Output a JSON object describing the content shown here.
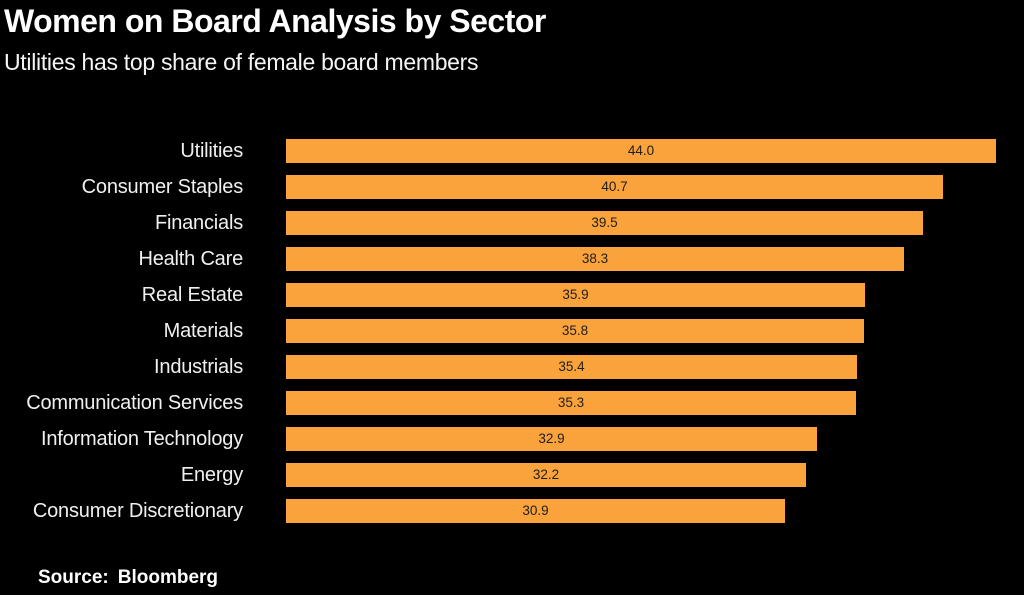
{
  "header": {
    "title": "Women on Board Analysis by Sector",
    "subtitle": "Utilities has top share of female board members"
  },
  "footer": {
    "source_label": "Source:",
    "source_value": "Bloomberg"
  },
  "colors": {
    "background": "#000000",
    "bar": "#FAA33C",
    "bar_value_text": "#1E1E1E",
    "title_text": "#FFFFFF",
    "category_label_text": "#F0F0F0"
  },
  "chart_data": {
    "type": "bar",
    "orientation": "horizontal",
    "title": "Women on Board Analysis by Sector",
    "subtitle": "Utilities has top share of female board members",
    "source": "Bloomberg",
    "categories": [
      "Utilities",
      "Consumer Staples",
      "Financials",
      "Health Care",
      "Real Estate",
      "Materials",
      "Industrials",
      "Communication Services",
      "Information Technology",
      "Energy",
      "Consumer Discretionary"
    ],
    "values": [
      44.0,
      40.7,
      39.5,
      38.3,
      35.9,
      35.8,
      35.4,
      35.3,
      32.9,
      32.2,
      30.9
    ],
    "value_labels": [
      "44.0",
      "40.7",
      "39.5",
      "38.3",
      "35.9",
      "35.8",
      "35.4",
      "35.3",
      "32.9",
      "32.2",
      "30.9"
    ],
    "xlabel": "",
    "ylabel": "",
    "xlim": [
      0,
      44.0
    ],
    "grid": false,
    "legend": false,
    "axis_lines": false,
    "value_label_position": "center-of-bar"
  }
}
